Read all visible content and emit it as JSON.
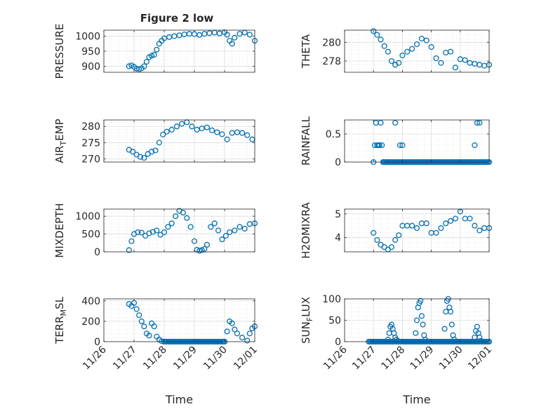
{
  "figure": {
    "title": "Figure 2 low",
    "marker_color": "#0072BD",
    "axis_color": "#262626",
    "grid_color": "#dcdcdc",
    "background": "#ffffff"
  },
  "chart_data": [
    {
      "type": "scatter",
      "ylabel": "PRESSURE",
      "xlabel": "",
      "xlim": [
        "11/26",
        "12/01"
      ],
      "ylim": [
        880,
        1020
      ],
      "yticks": [
        "900",
        "950",
        "1000"
      ],
      "grid": true,
      "x": [
        "11/26 20:00",
        "11/26 22:00",
        "11/27 00:00",
        "11/27 02:00",
        "11/27 04:00",
        "11/27 06:00",
        "11/27 08:00",
        "11/27 10:00",
        "11/27 12:00",
        "11/27 14:00",
        "11/27 16:00",
        "11/27 18:00",
        "11/27 20:00",
        "11/27 22:00",
        "11/28 00:00",
        "11/28 04:00",
        "11/28 08:00",
        "11/28 12:00",
        "11/28 16:00",
        "11/28 20:00",
        "11/29 00:00",
        "11/29 04:00",
        "11/29 08:00",
        "11/29 12:00",
        "11/29 16:00",
        "11/29 20:00",
        "11/30 00:00",
        "11/30 02:00",
        "11/30 04:00",
        "11/30 06:00",
        "11/30 08:00",
        "11/30 12:00",
        "11/30 16:00",
        "11/30 20:00",
        "12/01 00:00"
      ],
      "y": [
        900,
        903,
        898,
        892,
        890,
        893,
        900,
        915,
        930,
        935,
        938,
        955,
        975,
        985,
        993,
        997,
        1000,
        1003,
        1006,
        1008,
        1007,
        1004,
        1008,
        1010,
        1012,
        1009,
        1013,
        1005,
        985,
        975,
        995,
        1008,
        1012,
        1005,
        985
      ]
    },
    {
      "type": "scatter",
      "ylabel": "THETA",
      "xlabel": "",
      "xlim": [
        "11/26",
        "12/01"
      ],
      "ylim": [
        276.8,
        281.3
      ],
      "yticks": [
        "278",
        "280"
      ],
      "grid": true,
      "x": [
        "11/27 00:00",
        "11/27 03:00",
        "11/27 06:00",
        "11/27 09:00",
        "11/27 12:00",
        "11/27 15:00",
        "11/27 18:00",
        "11/27 21:00",
        "11/28 00:00",
        "11/28 04:00",
        "11/28 08:00",
        "11/28 12:00",
        "11/28 16:00",
        "11/28 20:00",
        "11/29 00:00",
        "11/29 04:00",
        "11/29 08:00",
        "11/29 12:00",
        "11/29 16:00",
        "11/29 20:00",
        "11/30 00:00",
        "11/30 04:00",
        "11/30 08:00",
        "11/30 12:00",
        "11/30 16:00",
        "11/30 20:00",
        "12/01 00:00"
      ],
      "y": [
        281.2,
        280.8,
        280.3,
        279.6,
        279.0,
        278.0,
        277.6,
        277.8,
        278.6,
        279.0,
        279.3,
        279.8,
        280.4,
        280.2,
        279.5,
        278.3,
        277.8,
        278.9,
        279.0,
        277.3,
        278.2,
        278.1,
        277.8,
        277.7,
        277.6,
        277.5,
        277.6
      ]
    },
    {
      "type": "scatter",
      "ylabel": "AIR_TEMP",
      "xlabel": "",
      "xlim": [
        "11/26",
        "12/01"
      ],
      "ylim": [
        269,
        282
      ],
      "yticks": [
        "270",
        "275",
        "280"
      ],
      "grid": true,
      "x": [
        "11/26 20:00",
        "11/26 23:00",
        "11/27 02:00",
        "11/27 05:00",
        "11/27 08:00",
        "11/27 11:00",
        "11/27 14:00",
        "11/27 17:00",
        "11/27 20:00",
        "11/27 23:00",
        "11/28 02:00",
        "11/28 06:00",
        "11/28 10:00",
        "11/28 14:00",
        "11/28 18:00",
        "11/28 22:00",
        "11/29 02:00",
        "11/29 06:00",
        "11/29 10:00",
        "11/29 14:00",
        "11/29 18:00",
        "11/29 22:00",
        "11/30 02:00",
        "11/30 06:00",
        "11/30 10:00",
        "11/30 14:00",
        "11/30 18:00",
        "11/30 22:00"
      ],
      "y": [
        272.8,
        272.2,
        271.3,
        270.6,
        270.3,
        271.5,
        272.2,
        272.6,
        275.0,
        277.5,
        278.4,
        279.0,
        280.0,
        280.8,
        281.3,
        280.0,
        279.0,
        279.4,
        279.7,
        278.8,
        278.2,
        277.6,
        276.0,
        278.0,
        278.2,
        278.0,
        277.3,
        276.0
      ]
    },
    {
      "type": "scatter",
      "ylabel": "RAINFALL",
      "xlabel": "",
      "xlim": [
        "11/26",
        "12/01"
      ],
      "ylim": [
        0,
        0.75
      ],
      "yticks": [
        "0",
        "0.5"
      ],
      "grid": true,
      "x": [
        "11/27 00:00",
        "11/27 01:00",
        "11/27 02:00",
        "11/27 03:00",
        "11/27 04:00",
        "11/27 05:00",
        "11/27 06:00",
        "11/27 07:00",
        "11/27 08:00",
        "11/27 09:00",
        "11/27 18:00",
        "11/27 22:00",
        "11/28 00:00",
        "11/28 01:00",
        "11/30 12:00",
        "11/30 14:00",
        "11/30 16:00"
      ],
      "y": [
        0,
        0.3,
        0.7,
        0.3,
        0.3,
        0.3,
        0.7,
        0.3,
        0,
        0,
        0.7,
        0.3,
        0.3,
        0,
        0.3,
        0.7,
        0.7
      ],
      "baseline_range": [
        "11/27 08:00",
        "12/01 00:00"
      ],
      "baseline_value": 0
    },
    {
      "type": "scatter",
      "ylabel": "MIXDEPTH",
      "xlabel": "",
      "xlim": [
        "11/26",
        "12/01"
      ],
      "ylim": [
        0,
        1200
      ],
      "yticks": [
        "0",
        "500",
        "1000"
      ],
      "grid": true,
      "x": [
        "11/26 20:00",
        "11/26 22:00",
        "11/27 00:00",
        "11/27 03:00",
        "11/27 06:00",
        "11/27 09:00",
        "11/27 12:00",
        "11/27 15:00",
        "11/27 18:00",
        "11/27 21:00",
        "11/28 00:00",
        "11/28 03:00",
        "11/28 06:00",
        "11/28 09:00",
        "11/28 12:00",
        "11/28 15:00",
        "11/28 18:00",
        "11/28 21:00",
        "11/29 00:00",
        "11/29 02:00",
        "11/29 04:00",
        "11/29 06:00",
        "11/29 08:00",
        "11/29 10:00",
        "11/29 13:00",
        "11/29 16:00",
        "11/29 19:00",
        "11/29 22:00",
        "11/30 01:00",
        "11/30 04:00",
        "11/30 08:00",
        "11/30 12:00",
        "11/30 16:00",
        "11/30 20:00",
        "12/01 00:00"
      ],
      "y": [
        50,
        300,
        500,
        550,
        540,
        450,
        520,
        560,
        600,
        480,
        550,
        700,
        800,
        1000,
        1150,
        1100,
        950,
        700,
        300,
        60,
        30,
        50,
        80,
        200,
        700,
        800,
        600,
        350,
        450,
        550,
        600,
        700,
        650,
        780,
        800
      ]
    },
    {
      "type": "scatter",
      "ylabel": "H2OMIXRA",
      "xlabel": "",
      "xlim": [
        "11/26",
        "12/01"
      ],
      "ylim": [
        3.4,
        5.2
      ],
      "yticks": [
        "4",
        "5"
      ],
      "grid": true,
      "x": [
        "11/27 00:00",
        "11/27 03:00",
        "11/27 06:00",
        "11/27 09:00",
        "11/27 12:00",
        "11/27 15:00",
        "11/27 18:00",
        "11/27 21:00",
        "11/28 00:00",
        "11/28 04:00",
        "11/28 08:00",
        "11/28 12:00",
        "11/28 16:00",
        "11/28 20:00",
        "11/29 00:00",
        "11/29 04:00",
        "11/29 08:00",
        "11/29 12:00",
        "11/29 16:00",
        "11/29 20:00",
        "11/30 00:00",
        "11/30 04:00",
        "11/30 08:00",
        "11/30 12:00",
        "11/30 16:00",
        "11/30 20:00",
        "12/01 00:00"
      ],
      "y": [
        4.2,
        3.9,
        3.7,
        3.6,
        3.5,
        3.6,
        3.9,
        4.1,
        4.5,
        4.5,
        4.5,
        4.4,
        4.6,
        4.6,
        4.2,
        4.2,
        4.4,
        4.6,
        4.7,
        4.8,
        5.1,
        4.8,
        4.8,
        4.5,
        4.3,
        4.4,
        4.4
      ]
    },
    {
      "type": "scatter",
      "ylabel": "TERR_MSL",
      "xlabel": "Time",
      "xlim": [
        "11/26",
        "12/01"
      ],
      "ylim": [
        0,
        420
      ],
      "yticks": [
        "0",
        "200",
        "400"
      ],
      "grid": true,
      "xticks": [
        "11/26",
        "11/27",
        "11/28",
        "11/29",
        "11/30",
        "12/01"
      ],
      "x": [
        "11/26 20:00",
        "11/26 22:00",
        "11/27 00:00",
        "11/27 02:00",
        "11/27 04:00",
        "11/27 06:00",
        "11/27 08:00",
        "11/27 10:00",
        "11/27 12:00",
        "11/27 14:00",
        "11/27 16:00",
        "11/27 18:00",
        "11/27 20:00",
        "11/27 22:00",
        "11/28 00:00",
        "11/30 00:00",
        "11/30 02:00",
        "11/30 04:00",
        "11/30 06:00",
        "11/30 08:00",
        "11/30 10:00",
        "11/30 14:00",
        "11/30 18:00",
        "11/30 20:00",
        "11/30 22:00",
        "12/01 00:00"
      ],
      "y": [
        370,
        350,
        380,
        320,
        260,
        200,
        150,
        80,
        60,
        180,
        150,
        50,
        20,
        5,
        0,
        0,
        100,
        200,
        180,
        120,
        80,
        40,
        10,
        80,
        130,
        150
      ],
      "baseline_range": [
        "11/28 00:00",
        "11/30 00:00"
      ],
      "baseline_value": 0
    },
    {
      "type": "scatter",
      "ylabel": "SUN_FLUX",
      "xlabel": "Time",
      "xlim": [
        "11/26",
        "12/01"
      ],
      "ylim": [
        0,
        100
      ],
      "yticks": [
        "0",
        "50",
        "100"
      ],
      "grid": true,
      "xticks": [
        "11/26",
        "11/27",
        "11/28",
        "11/29",
        "11/30",
        "12/01"
      ],
      "x": [
        "11/27 12:00",
        "11/27 13:00",
        "11/27 14:00",
        "11/27 15:00",
        "11/27 16:00",
        "11/27 17:00",
        "11/27 18:00",
        "11/27 19:00",
        "11/27 20:00",
        "11/28 11:00",
        "11/28 12:00",
        "11/28 13:00",
        "11/28 14:00",
        "11/28 15:00",
        "11/28 16:00",
        "11/28 17:00",
        "11/28 18:00",
        "11/28 19:00",
        "11/29 11:00",
        "11/29 12:00",
        "11/29 13:00",
        "11/29 14:00",
        "11/29 15:00",
        "11/29 16:00",
        "11/29 17:00",
        "11/29 18:00",
        "11/29 19:00",
        "11/30 12:00",
        "11/30 13:00",
        "11/30 14:00",
        "11/30 15:00",
        "11/30 16:00",
        "11/30 17:00"
      ],
      "y": [
        5,
        20,
        35,
        40,
        30,
        20,
        10,
        5,
        2,
        20,
        50,
        80,
        90,
        95,
        60,
        40,
        15,
        5,
        30,
        70,
        95,
        100,
        80,
        70,
        40,
        15,
        5,
        10,
        25,
        35,
        20,
        10,
        2
      ],
      "baseline_range": [
        "11/26 20:00",
        "12/01 00:00"
      ],
      "baseline_value": 0
    }
  ]
}
